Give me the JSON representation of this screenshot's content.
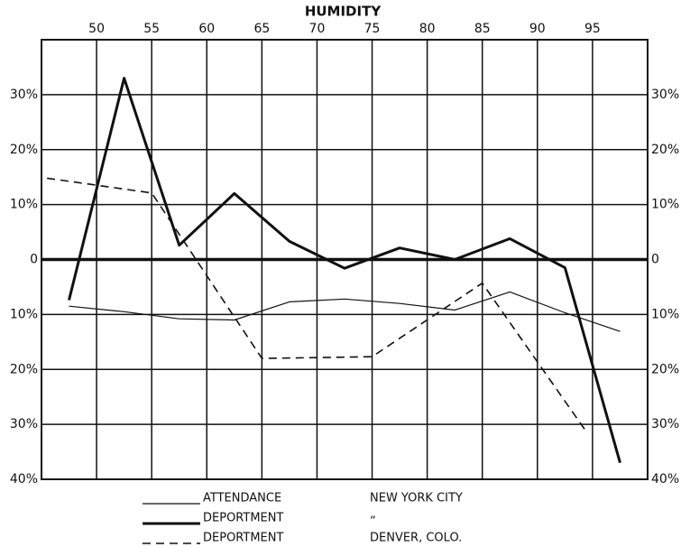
{
  "chart_data": {
    "type": "line",
    "title": "HUMIDITY",
    "xlim": [
      45,
      100
    ],
    "xticks": [
      50,
      55,
      60,
      65,
      70,
      75,
      80,
      85,
      90,
      95
    ],
    "ylim": [
      -40,
      40
    ],
    "yticks": [
      {
        "value": -40,
        "label": "40%"
      },
      {
        "value": -30,
        "label": "30%"
      },
      {
        "value": -20,
        "label": "20%"
      },
      {
        "value": -10,
        "label": "10%"
      },
      0,
      {
        "value": 10,
        "label": "10%"
      },
      {
        "value": 20,
        "label": "20%"
      },
      {
        "value": 30,
        "label": "30%"
      }
    ],
    "grid": true,
    "series": [
      {
        "name": "ATTENDANCE",
        "group": "NEW YORK CITY",
        "color": "#111111",
        "style": "thin",
        "x": [
          47.5,
          52.5,
          57.5,
          62.5,
          67.5,
          72.5,
          77.5,
          82.5,
          87.5,
          92.5,
          97.5
        ],
        "values": [
          -8.5,
          -9.5,
          -10.8,
          -11,
          -7.7,
          -7.2,
          -8,
          -9.2,
          -5.9,
          -9.7,
          -13.1
        ]
      },
      {
        "name": "DEPORTMENT",
        "group": "”",
        "color": "#111111",
        "style": "thick",
        "x": [
          47.5,
          52.5,
          57.5,
          62.5,
          67.5,
          72.5,
          77.5,
          82.5,
          87.5,
          92.5,
          97.5
        ],
        "values": [
          -7.4,
          33,
          2.6,
          12,
          3.3,
          -1.6,
          2.1,
          0,
          3.8,
          -1.5,
          -37
        ]
      },
      {
        "name": "DEPORTMENT",
        "group": "DENVER, COLO.",
        "color": "#111111",
        "style": "dashed",
        "x": [
          45.5,
          55,
          65,
          75,
          85,
          94.5
        ],
        "values": [
          14.8,
          12.1,
          -18,
          -17.7,
          -4.3,
          -31.5
        ]
      }
    ]
  }
}
